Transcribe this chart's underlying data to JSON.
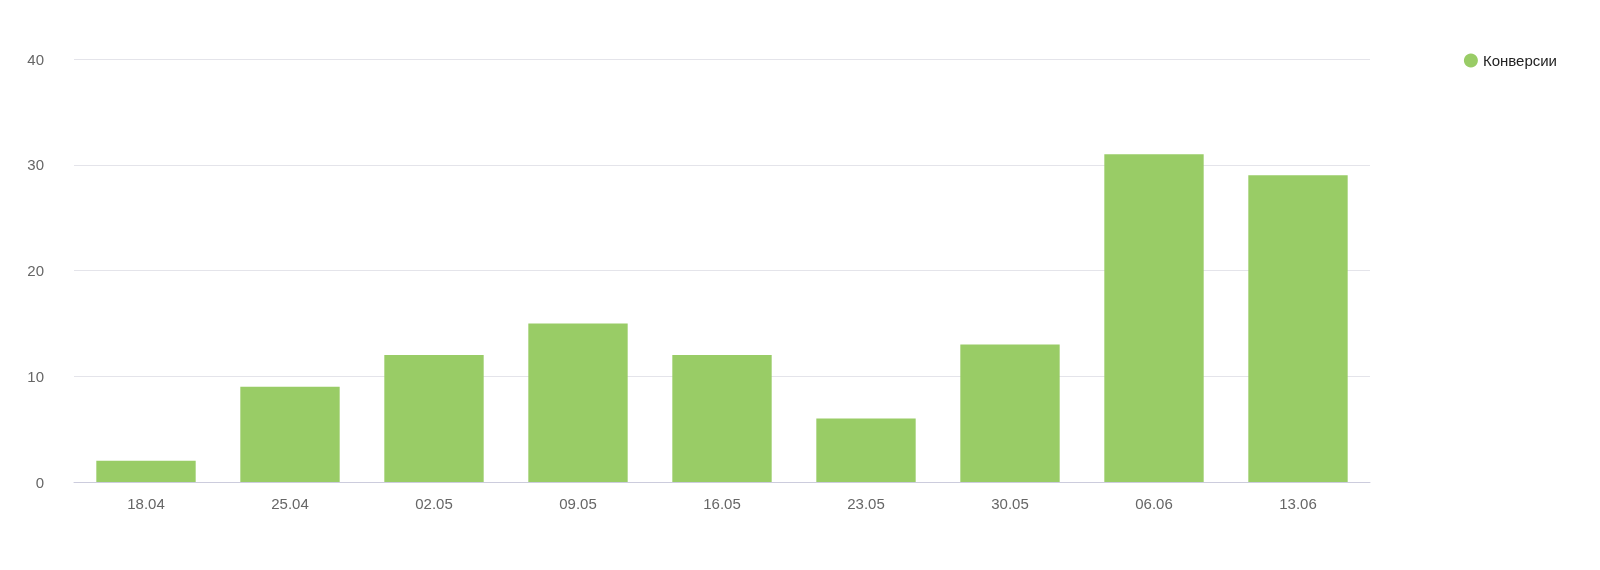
{
  "chart_data": {
    "type": "bar",
    "categories": [
      "18.04",
      "25.04",
      "02.05",
      "09.05",
      "16.05",
      "23.05",
      "30.05",
      "06.06",
      "13.06"
    ],
    "series": [
      {
        "name": "Конверсии",
        "color": "#99cc66",
        "values": [
          2,
          9,
          12,
          15,
          12,
          6,
          13,
          31,
          29
        ]
      }
    ],
    "ylim": [
      0,
      40
    ],
    "yticks": [
      0,
      10,
      20,
      30,
      40
    ],
    "grid": "y",
    "legend": "top right"
  }
}
